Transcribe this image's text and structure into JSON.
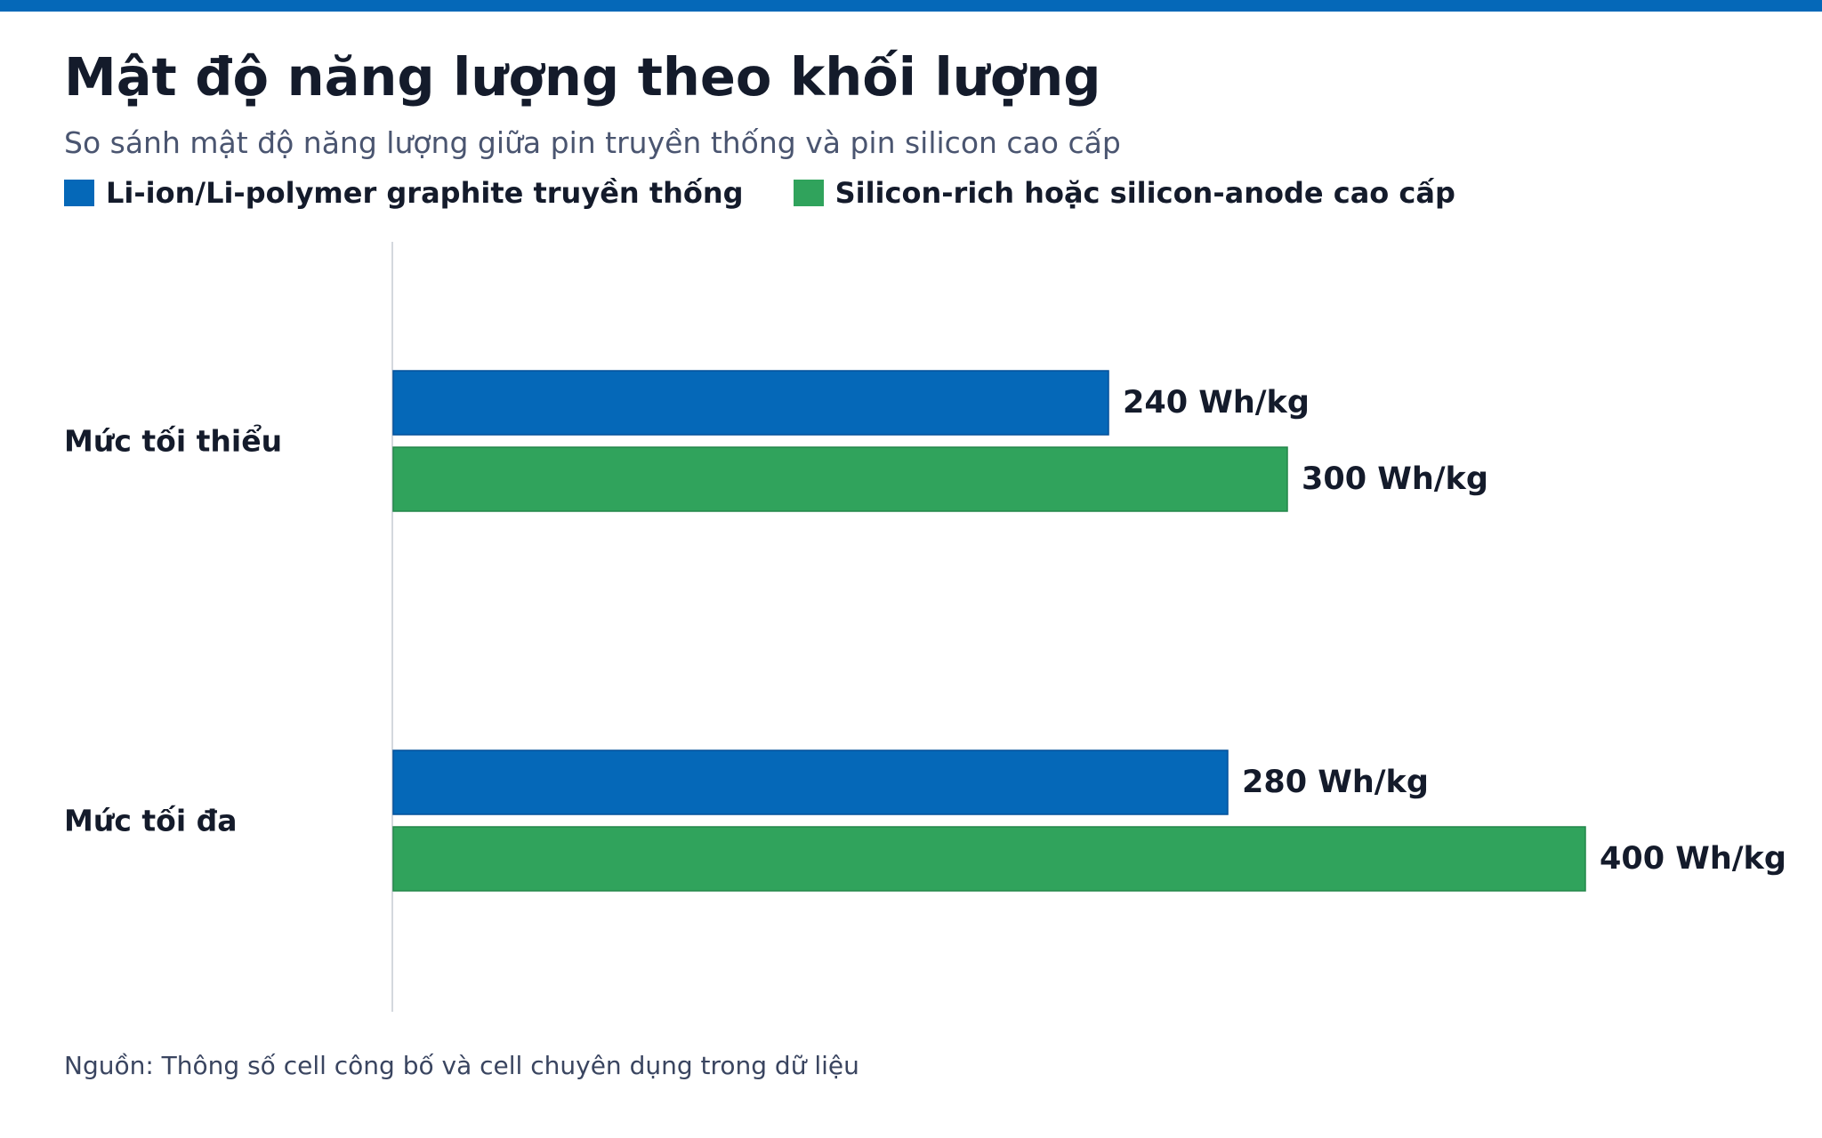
{
  "header": {
    "title": "Mật độ năng lượng theo khối lượng",
    "subtitle": "So sánh mật độ năng lượng giữa pin truyền thống và pin silicon cao cấp"
  },
  "legend": [
    {
      "label": "Li-ion/Li-polymer graphite truyền thống",
      "color": "#0568b8"
    },
    {
      "label": "Silicon-rich hoặc silicon-anode cao cấp",
      "color": "#30a35c"
    }
  ],
  "source": "Nguồn: Thông số cell công bố và cell chuyên dụng trong dữ liệu",
  "chart_data": {
    "type": "bar",
    "orientation": "horizontal",
    "categories": [
      "Mức tối thiểu",
      "Mức tối đa"
    ],
    "series": [
      {
        "name": "Li-ion/Li-polymer graphite truyền thống",
        "values": [
          240,
          280
        ],
        "labels": [
          "240 Wh/kg",
          "280 Wh/kg"
        ],
        "color": "#0568b8"
      },
      {
        "name": "Silicon-rich hoặc silicon-anode cao cấp",
        "values": [
          300,
          400
        ],
        "labels": [
          "300 Wh/kg",
          "400 Wh/kg"
        ],
        "color": "#30a35c"
      }
    ],
    "unit": "Wh/kg",
    "xlim": [
      0,
      400
    ],
    "grid": false,
    "legend_position": "top-left"
  }
}
